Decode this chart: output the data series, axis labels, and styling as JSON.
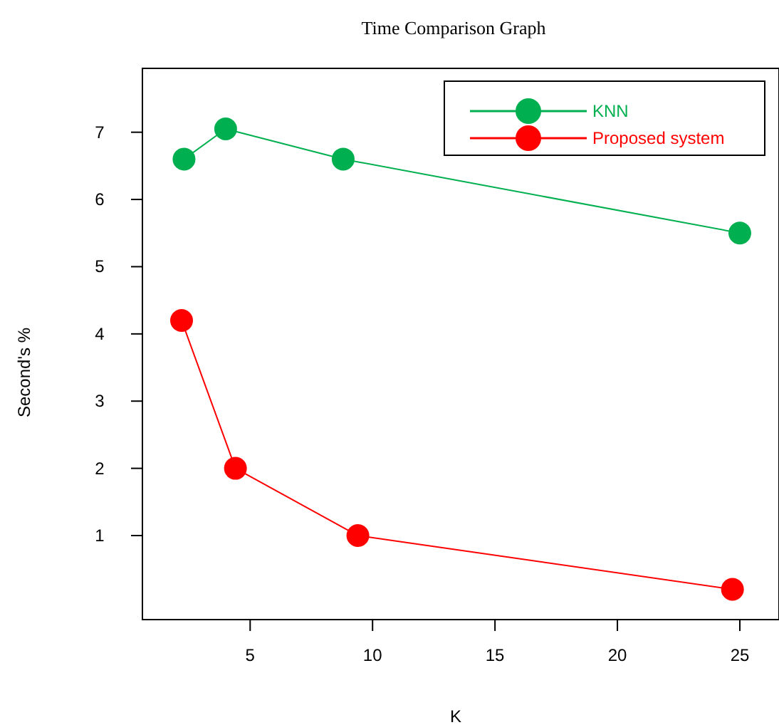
{
  "chart_data": {
    "type": "line",
    "title": "Time Comparison Graph",
    "xlabel": "K",
    "ylabel": "Second's %",
    "xlim": [
      0.6,
      26.6
    ],
    "xticks": [
      5,
      10,
      15,
      20,
      25
    ],
    "ylim": [
      -0.25,
      7.95
    ],
    "yticks": [
      1,
      2,
      3,
      4,
      5,
      6,
      7
    ],
    "marker": "circle",
    "legend": "top right",
    "grid": false,
    "series": [
      {
        "name": "KNN",
        "color": "#00b050",
        "x": [
          2.3,
          4,
          8.8,
          25
        ],
        "values": [
          6.6,
          7.05,
          6.6,
          5.5
        ]
      },
      {
        "name": "Proposed system",
        "color": "#ff0000",
        "x": [
          2.2,
          4.4,
          9.4,
          24.7
        ],
        "values": [
          4.2,
          2,
          1,
          0.2
        ]
      }
    ]
  }
}
